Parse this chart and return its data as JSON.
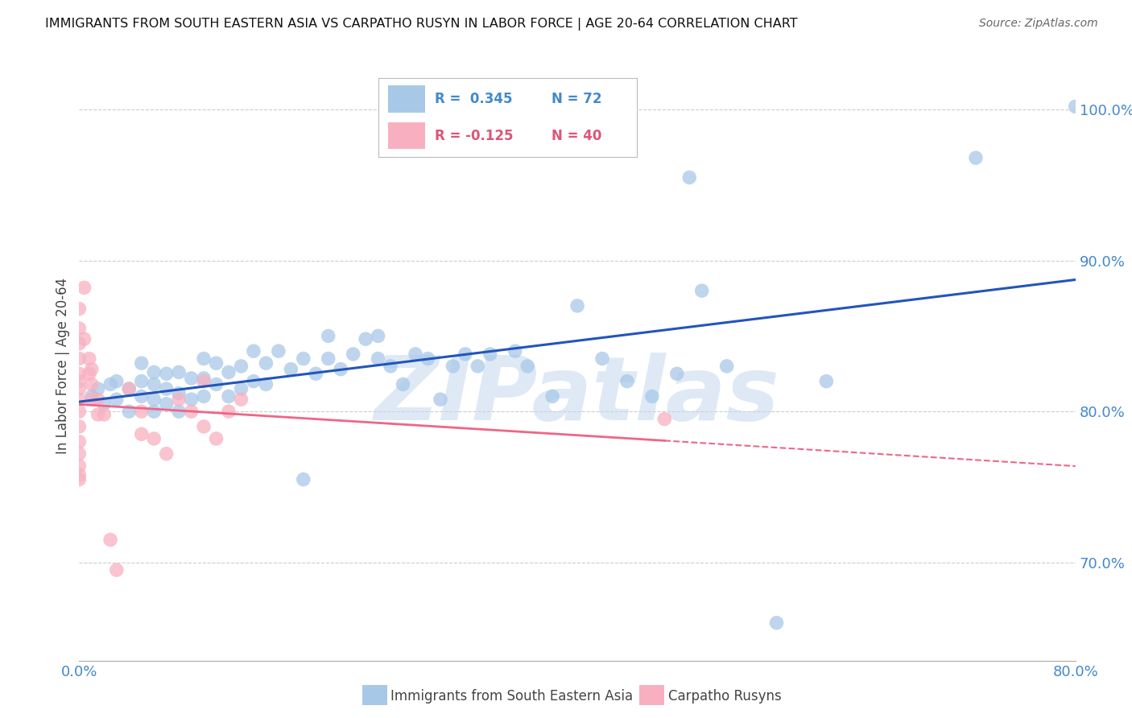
{
  "title": "IMMIGRANTS FROM SOUTH EASTERN ASIA VS CARPATHO RUSYN IN LABOR FORCE | AGE 20-64 CORRELATION CHART",
  "source": "Source: ZipAtlas.com",
  "xlabel_blue": "Immigrants from South Eastern Asia",
  "xlabel_pink": "Carpatho Rusyns",
  "ylabel": "In Labor Force | Age 20-64",
  "watermark": "ZIPatlas",
  "legend_blue_r": "R =  0.345",
  "legend_blue_n": "N = 72",
  "legend_pink_r": "R = -0.125",
  "legend_pink_n": "N = 40",
  "xlim": [
    0.0,
    0.8
  ],
  "ylim": [
    0.635,
    1.025
  ],
  "yticks": [
    0.7,
    0.8,
    0.9,
    1.0
  ],
  "ytick_labels": [
    "70.0%",
    "80.0%",
    "90.0%",
    "100.0%"
  ],
  "xticks": [
    0.0,
    0.1,
    0.2,
    0.3,
    0.4,
    0.5,
    0.6,
    0.7,
    0.8
  ],
  "xtick_labels": [
    "0.0%",
    "",
    "",
    "",
    "",
    "",
    "",
    "",
    "80.0%"
  ],
  "color_blue": "#A8C8E8",
  "color_pink": "#F8B0C0",
  "line_blue": "#2255BB",
  "line_pink": "#EE6688",
  "background": "#FFFFFF",
  "grid_color": "#CCCCCC",
  "axis_color": "#4488CC",
  "blue_x": [
    0.01,
    0.015,
    0.02,
    0.025,
    0.03,
    0.03,
    0.04,
    0.04,
    0.05,
    0.05,
    0.05,
    0.06,
    0.06,
    0.06,
    0.06,
    0.07,
    0.07,
    0.07,
    0.08,
    0.08,
    0.08,
    0.09,
    0.09,
    0.1,
    0.1,
    0.1,
    0.11,
    0.11,
    0.12,
    0.12,
    0.13,
    0.13,
    0.14,
    0.14,
    0.15,
    0.15,
    0.16,
    0.17,
    0.18,
    0.18,
    0.19,
    0.2,
    0.2,
    0.21,
    0.22,
    0.23,
    0.24,
    0.24,
    0.25,
    0.26,
    0.27,
    0.28,
    0.29,
    0.3,
    0.31,
    0.32,
    0.33,
    0.35,
    0.36,
    0.38,
    0.4,
    0.42,
    0.44,
    0.46,
    0.48,
    0.49,
    0.5,
    0.52,
    0.56,
    0.6,
    0.72,
    0.8
  ],
  "blue_y": [
    0.81,
    0.815,
    0.805,
    0.818,
    0.808,
    0.82,
    0.8,
    0.815,
    0.81,
    0.82,
    0.832,
    0.8,
    0.808,
    0.818,
    0.826,
    0.805,
    0.815,
    0.825,
    0.8,
    0.812,
    0.826,
    0.808,
    0.822,
    0.81,
    0.822,
    0.835,
    0.818,
    0.832,
    0.81,
    0.826,
    0.815,
    0.83,
    0.82,
    0.84,
    0.818,
    0.832,
    0.84,
    0.828,
    0.755,
    0.835,
    0.825,
    0.85,
    0.835,
    0.828,
    0.838,
    0.848,
    0.835,
    0.85,
    0.83,
    0.818,
    0.838,
    0.835,
    0.808,
    0.83,
    0.838,
    0.83,
    0.838,
    0.84,
    0.83,
    0.81,
    0.87,
    0.835,
    0.82,
    0.81,
    0.825,
    0.955,
    0.88,
    0.83,
    0.66,
    0.82,
    0.968,
    1.002
  ],
  "pink_x": [
    0.0,
    0.0,
    0.0,
    0.0,
    0.0,
    0.0,
    0.0,
    0.0,
    0.0,
    0.0,
    0.0,
    0.0,
    0.0,
    0.0,
    0.0,
    0.004,
    0.004,
    0.008,
    0.008,
    0.01,
    0.01,
    0.01,
    0.015,
    0.015,
    0.02,
    0.025,
    0.03,
    0.04,
    0.05,
    0.05,
    0.06,
    0.07,
    0.08,
    0.09,
    0.1,
    0.1,
    0.11,
    0.12,
    0.13,
    0.47
  ],
  "pink_y": [
    0.868,
    0.855,
    0.845,
    0.835,
    0.825,
    0.82,
    0.815,
    0.808,
    0.8,
    0.79,
    0.78,
    0.772,
    0.764,
    0.758,
    0.755,
    0.882,
    0.848,
    0.835,
    0.825,
    0.828,
    0.818,
    0.808,
    0.808,
    0.798,
    0.798,
    0.715,
    0.695,
    0.815,
    0.785,
    0.8,
    0.782,
    0.772,
    0.808,
    0.8,
    0.82,
    0.79,
    0.782,
    0.8,
    0.808,
    0.795
  ]
}
